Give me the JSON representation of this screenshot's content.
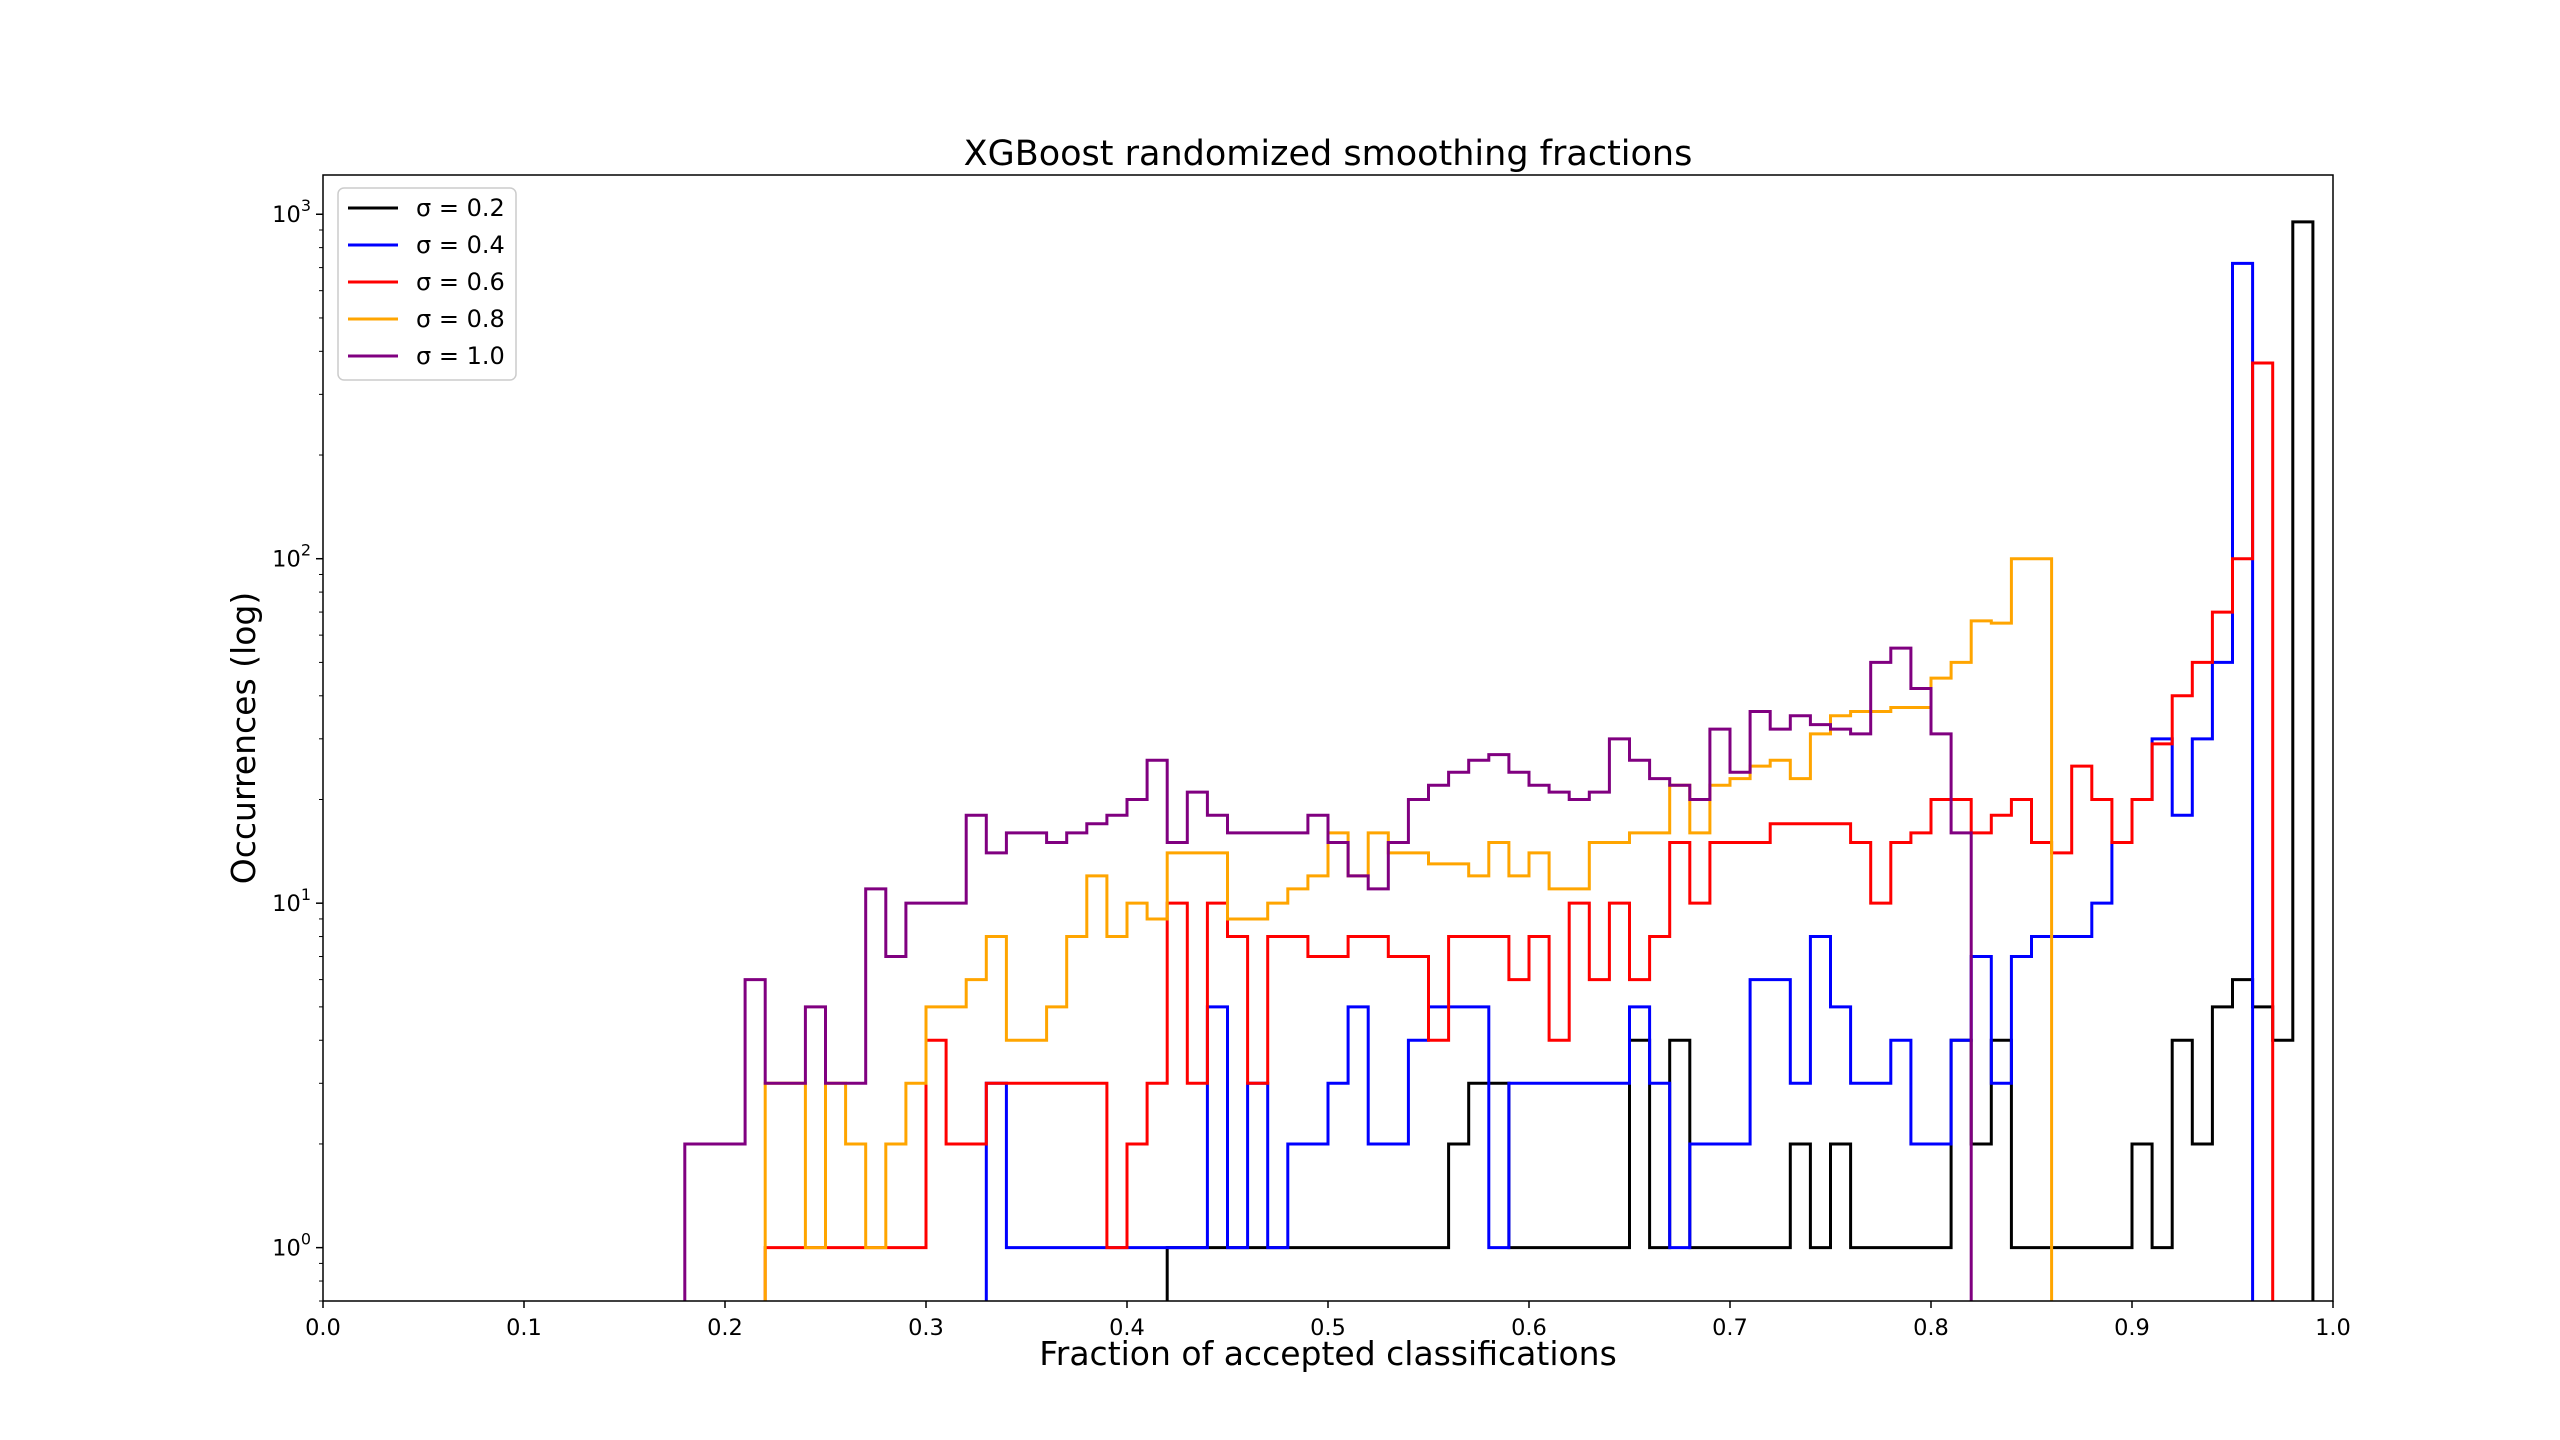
{
  "chart_data": {
    "type": "histogram-step",
    "title": "XGBoost randomized smoothing fractions",
    "xlabel": "Fraction of accepted classifications",
    "ylabel": "Occurrences (log)",
    "xlim": [
      0.0,
      1.0
    ],
    "ylim": [
      0.7,
      1300
    ],
    "yscale": "log",
    "xticks": [
      "0.0",
      "0.1",
      "0.2",
      "0.3",
      "0.4",
      "0.5",
      "0.6",
      "0.7",
      "0.8",
      "0.9",
      "1.0"
    ],
    "yticks": [
      {
        "base": "10",
        "exp": "0"
      },
      {
        "base": "10",
        "exp": "1"
      },
      {
        "base": "10",
        "exp": "2"
      },
      {
        "base": "10",
        "exp": "3"
      }
    ],
    "legend_position": "top-left",
    "series": [
      {
        "name": "σ = 0.2",
        "color": "#000000",
        "x": [
          0.42,
          0.43,
          0.44,
          0.45,
          0.49,
          0.54,
          0.55,
          0.56,
          0.57,
          0.58,
          0.59,
          0.6,
          0.62,
          0.64,
          0.65,
          0.66,
          0.67,
          0.68,
          0.69,
          0.7,
          0.71,
          0.72,
          0.73,
          0.74,
          0.75,
          0.76,
          0.77,
          0.78,
          0.8,
          0.81,
          0.82,
          0.83,
          0.84,
          0.85,
          0.86,
          0.87,
          0.88,
          0.89,
          0.9,
          0.91,
          0.92,
          0.93,
          0.94,
          0.95,
          0.96,
          0.97,
          0.98,
          0.99
        ],
        "y": [
          1,
          1,
          1,
          1,
          1,
          1,
          1,
          2,
          3,
          3,
          1,
          1,
          1,
          1,
          4,
          1,
          4,
          1,
          1,
          1,
          1,
          1,
          2,
          1,
          2,
          1,
          1,
          1,
          1,
          4,
          2,
          4,
          1,
          1,
          1,
          1,
          1,
          1,
          2,
          1,
          4,
          2,
          5,
          6,
          5,
          4,
          950,
          0
        ]
      },
      {
        "name": "σ = 0.4",
        "color": "#0000ff",
        "x": [
          0.33,
          0.34,
          0.35,
          0.36,
          0.37,
          0.43,
          0.44,
          0.45,
          0.46,
          0.47,
          0.48,
          0.49,
          0.5,
          0.51,
          0.52,
          0.53,
          0.54,
          0.55,
          0.56,
          0.57,
          0.58,
          0.59,
          0.6,
          0.61,
          0.62,
          0.63,
          0.64,
          0.65,
          0.66,
          0.67,
          0.68,
          0.69,
          0.7,
          0.71,
          0.72,
          0.73,
          0.74,
          0.75,
          0.76,
          0.77,
          0.78,
          0.79,
          0.8,
          0.81,
          0.82,
          0.83,
          0.84,
          0.85,
          0.86,
          0.87,
          0.88,
          0.89,
          0.9,
          0.91,
          0.92,
          0.93,
          0.94,
          0.95,
          0.96,
          0.97,
          0.98,
          0.99
        ],
        "y": [
          3,
          1,
          1,
          1,
          1,
          1,
          5,
          1,
          3,
          1,
          2,
          2,
          3,
          5,
          2,
          2,
          4,
          5,
          5,
          5,
          1,
          3,
          3,
          3,
          3,
          3,
          3,
          5,
          3,
          1,
          2,
          2,
          2,
          6,
          6,
          3,
          8,
          5,
          3,
          3,
          4,
          2,
          2,
          4,
          7,
          3,
          7,
          8,
          8,
          8,
          10,
          15,
          20,
          30,
          18,
          30,
          50,
          720,
          0,
          0,
          0,
          0
        ]
      },
      {
        "name": "σ = 0.6",
        "color": "#ff0000",
        "x": [
          0.22,
          0.23,
          0.24,
          0.25,
          0.26,
          0.27,
          0.28,
          0.29,
          0.3,
          0.31,
          0.32,
          0.33,
          0.34,
          0.35,
          0.36,
          0.37,
          0.38,
          0.39,
          0.4,
          0.41,
          0.42,
          0.43,
          0.44,
          0.45,
          0.46,
          0.47,
          0.48,
          0.49,
          0.5,
          0.51,
          0.52,
          0.53,
          0.54,
          0.55,
          0.56,
          0.57,
          0.58,
          0.59,
          0.6,
          0.61,
          0.62,
          0.63,
          0.64,
          0.65,
          0.66,
          0.67,
          0.68,
          0.69,
          0.7,
          0.71,
          0.72,
          0.73,
          0.74,
          0.75,
          0.76,
          0.77,
          0.78,
          0.79,
          0.8,
          0.81,
          0.82,
          0.83,
          0.84,
          0.85,
          0.86,
          0.87,
          0.88,
          0.89,
          0.9,
          0.91,
          0.92,
          0.93,
          0.94,
          0.95,
          0.96,
          0.97,
          0.98,
          0.99
        ],
        "y": [
          1,
          1,
          1,
          1,
          1,
          1,
          1,
          1,
          4,
          2,
          2,
          3,
          3,
          3,
          3,
          3,
          3,
          1,
          2,
          3,
          10,
          3,
          10,
          8,
          3,
          8,
          8,
          7,
          7,
          8,
          8,
          7,
          7,
          4,
          8,
          8,
          8,
          6,
          8,
          4,
          10,
          6,
          10,
          6,
          8,
          15,
          10,
          15,
          15,
          15,
          17,
          17,
          17,
          17,
          15,
          10,
          15,
          16,
          20,
          20,
          16,
          18,
          20,
          15,
          14,
          25,
          20,
          15,
          20,
          29,
          40,
          50,
          70,
          100,
          370,
          0,
          0,
          0
        ]
      },
      {
        "name": "σ = 0.8",
        "color": "#ffa500",
        "x": [
          0.22,
          0.23,
          0.24,
          0.25,
          0.26,
          0.27,
          0.28,
          0.29,
          0.3,
          0.31,
          0.32,
          0.33,
          0.34,
          0.35,
          0.36,
          0.37,
          0.38,
          0.39,
          0.4,
          0.41,
          0.42,
          0.43,
          0.44,
          0.45,
          0.46,
          0.47,
          0.48,
          0.49,
          0.5,
          0.51,
          0.52,
          0.53,
          0.54,
          0.55,
          0.56,
          0.57,
          0.58,
          0.59,
          0.6,
          0.61,
          0.62,
          0.63,
          0.64,
          0.65,
          0.66,
          0.67,
          0.68,
          0.69,
          0.7,
          0.71,
          0.72,
          0.73,
          0.74,
          0.75,
          0.76,
          0.77,
          0.78,
          0.79,
          0.8,
          0.81,
          0.82,
          0.83,
          0.84,
          0.85,
          0.86,
          0.87,
          0.88,
          0.89,
          0.9,
          0.91,
          0.92,
          0.93,
          0.94,
          0.95,
          0.96,
          0.97,
          0.98,
          0.99
        ],
        "y": [
          3,
          3,
          1,
          3,
          2,
          1,
          2,
          3,
          5,
          5,
          6,
          8,
          4,
          4,
          5,
          8,
          12,
          8,
          10,
          9,
          14,
          14,
          14,
          9,
          9,
          10,
          11,
          12,
          16,
          12,
          16,
          14,
          14,
          13,
          13,
          12,
          15,
          12,
          14,
          11,
          11,
          15,
          15,
          16,
          16,
          22,
          16,
          22,
          23,
          25,
          26,
          23,
          31,
          35,
          36,
          36,
          37,
          37,
          45,
          50,
          66,
          65,
          100,
          100,
          0,
          0,
          0,
          0,
          0,
          0,
          0,
          0,
          0,
          0,
          0,
          0,
          0,
          0
        ]
      },
      {
        "name": "σ = 1.0",
        "color": "#800080",
        "x": [
          0.18,
          0.19,
          0.2,
          0.21,
          0.22,
          0.23,
          0.24,
          0.25,
          0.26,
          0.27,
          0.28,
          0.29,
          0.3,
          0.31,
          0.32,
          0.33,
          0.34,
          0.35,
          0.36,
          0.37,
          0.38,
          0.39,
          0.4,
          0.41,
          0.42,
          0.43,
          0.44,
          0.45,
          0.46,
          0.47,
          0.48,
          0.49,
          0.5,
          0.51,
          0.52,
          0.53,
          0.54,
          0.55,
          0.56,
          0.57,
          0.58,
          0.59,
          0.6,
          0.61,
          0.62,
          0.63,
          0.64,
          0.65,
          0.66,
          0.67,
          0.68,
          0.69,
          0.7,
          0.71,
          0.72,
          0.73,
          0.74,
          0.75,
          0.76,
          0.77,
          0.78,
          0.79,
          0.8,
          0.81,
          0.82,
          0.83,
          0.84,
          0.85,
          0.86,
          0.87,
          0.88,
          0.89,
          0.9,
          0.91,
          0.92,
          0.93,
          0.94,
          0.95,
          0.96,
          0.97,
          0.98,
          0.99
        ],
        "y": [
          2,
          2,
          2,
          6,
          3,
          3,
          5,
          3,
          3,
          11,
          7,
          10,
          10,
          10,
          18,
          14,
          16,
          16,
          15,
          16,
          17,
          18,
          20,
          26,
          15,
          21,
          18,
          16,
          16,
          16,
          16,
          18,
          15,
          12,
          11,
          15,
          20,
          22,
          24,
          26,
          27,
          24,
          22,
          21,
          20,
          21,
          30,
          26,
          23,
          22,
          20,
          32,
          24,
          36,
          32,
          35,
          33,
          32,
          31,
          50,
          55,
          42,
          31,
          16,
          0,
          0,
          0,
          0,
          0,
          0,
          0,
          0,
          0,
          0,
          0,
          0,
          0,
          0,
          0,
          0,
          0,
          0
        ]
      }
    ]
  }
}
